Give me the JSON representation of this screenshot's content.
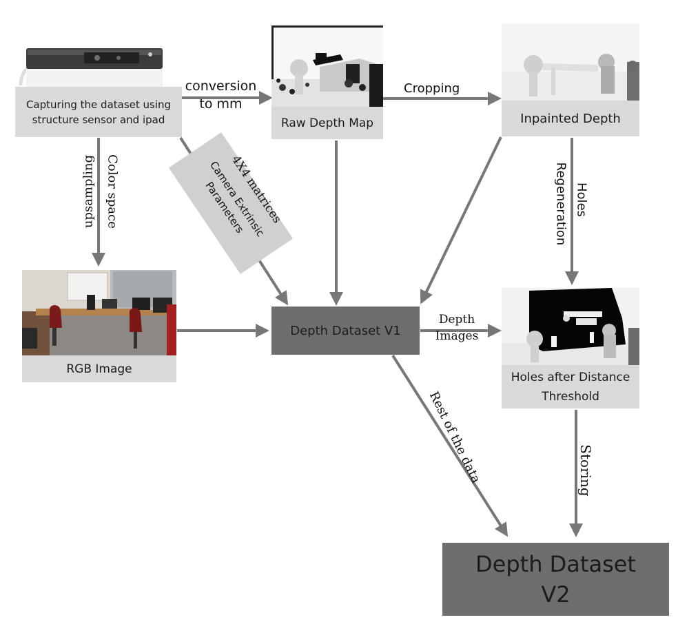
{
  "nodes": {
    "capture": "Capturing the dataset using structure sensor and ipad",
    "raw_depth": "Raw Depth Map",
    "inpainted": "Inpainted Depth",
    "rgb": "RGB Image",
    "v1": "Depth Dataset V1",
    "holes": "Holes after Distance Threshold",
    "v2": "Depth Dataset V2"
  },
  "edges": {
    "conversion": "conversion to mm",
    "cropping": "Cropping",
    "color_space": "Color space",
    "upsampling": "upsampling",
    "matrices": "4X4 matrices",
    "extrinsic": "Camera Extrinsic Parameters",
    "holes_regen_1": "Holes",
    "holes_regen_2": "Regeneration",
    "depth_images": "Depth Images",
    "rest": "Rest of the data",
    "storing": "Storing"
  },
  "colors": {
    "arrow": "#777777",
    "light_box": "#d9d9d9",
    "dark_box": "#6e6e6e"
  }
}
